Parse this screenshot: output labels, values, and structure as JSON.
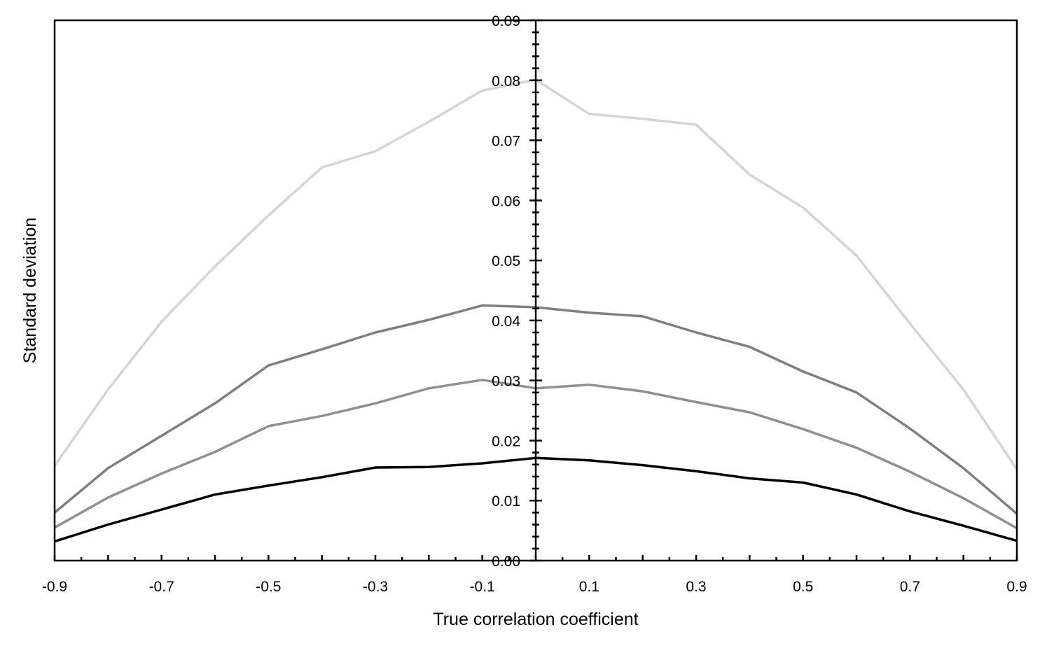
{
  "chart_data": {
    "type": "line",
    "xlabel": "True correlation coefficient",
    "ylabel": "Standard deviation",
    "xlim": [
      -0.9,
      0.9
    ],
    "ylim": [
      0,
      0.09
    ],
    "x_ticks": [
      "-0.9",
      "-0.7",
      "-0.5",
      "-0.3",
      "-0.1",
      "0.1",
      "0.3",
      "0.5",
      "0.7",
      "0.9"
    ],
    "y_ticks": [
      "0.00",
      "0.01",
      "0.02",
      "0.03",
      "0.04",
      "0.05",
      "0.06",
      "0.07",
      "0.08",
      "0.09"
    ],
    "x": [
      -0.9,
      -0.8,
      -0.7,
      -0.6,
      -0.5,
      -0.4,
      -0.3,
      -0.2,
      -0.1,
      0.0,
      0.1,
      0.2,
      0.3,
      0.4,
      0.5,
      0.6,
      0.7,
      0.8,
      0.9
    ],
    "grid": false,
    "legend": "none",
    "series": [
      {
        "color": "#d4d4d4",
        "values": [
          0.0158,
          0.0285,
          0.0398,
          0.049,
          0.0575,
          0.0655,
          0.0682,
          0.0731,
          0.0783,
          0.0801,
          0.0744,
          0.0736,
          0.0726,
          0.0643,
          0.0588,
          0.0508,
          0.0395,
          0.0285,
          0.0152
        ]
      },
      {
        "color": "#7f7f7f",
        "values": [
          0.008,
          0.0154,
          0.0208,
          0.0262,
          0.0325,
          0.0352,
          0.038,
          0.0401,
          0.0425,
          0.0422,
          0.0413,
          0.0407,
          0.038,
          0.0356,
          0.0315,
          0.028,
          0.022,
          0.0154,
          0.0078
        ]
      },
      {
        "color": "#909090",
        "values": [
          0.0055,
          0.0105,
          0.0145,
          0.0181,
          0.0224,
          0.0241,
          0.0262,
          0.0287,
          0.0301,
          0.0287,
          0.0293,
          0.0282,
          0.0264,
          0.0247,
          0.0219,
          0.0188,
          0.0148,
          0.0104,
          0.0054
        ]
      },
      {
        "color": "#000000",
        "values": [
          0.0032,
          0.006,
          0.0085,
          0.011,
          0.0125,
          0.0139,
          0.0155,
          0.0156,
          0.0162,
          0.0171,
          0.0167,
          0.0159,
          0.0149,
          0.0137,
          0.013,
          0.011,
          0.0082,
          0.0058,
          0.0033
        ]
      }
    ]
  }
}
